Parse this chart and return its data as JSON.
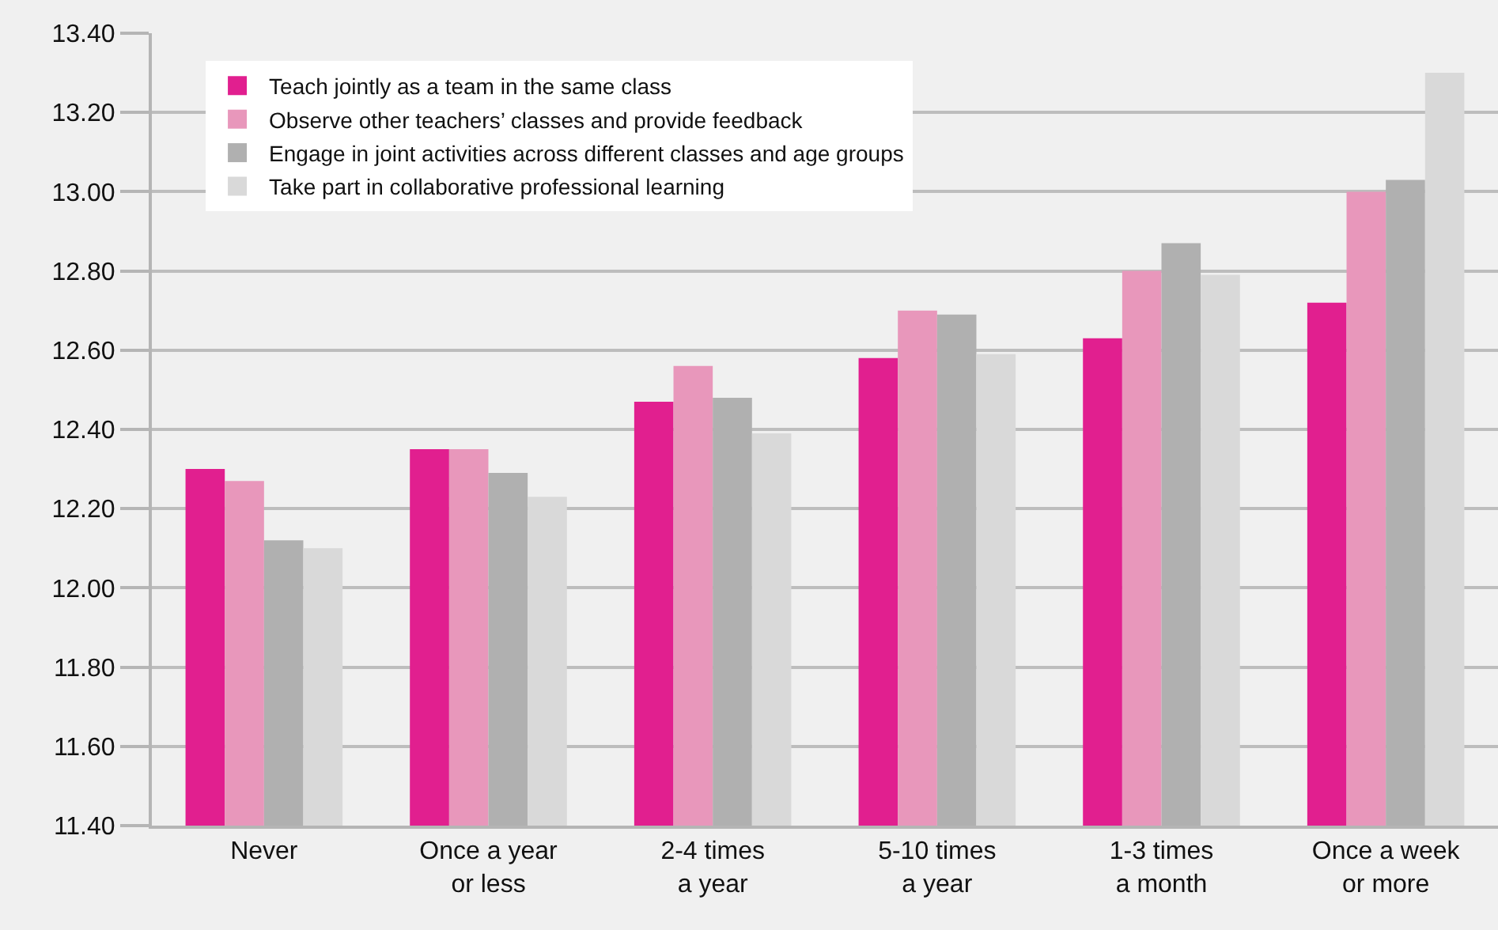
{
  "chart_data": {
    "type": "bar",
    "categories": [
      "Never",
      "Once a year\nor less",
      "2-4 times\na year",
      "5-10 times\na year",
      "1-3 times\na month",
      "Once a week\nor more"
    ],
    "series": [
      {
        "name": "Teach jointly as a team in the same class",
        "color": "#e11f8f",
        "values": [
          12.3,
          12.35,
          12.47,
          12.58,
          12.63,
          12.72
        ]
      },
      {
        "name": "Observe other teachers’ classes and provide feedback",
        "color": "#e897bb",
        "values": [
          12.27,
          12.35,
          12.56,
          12.7,
          12.8,
          13.0
        ]
      },
      {
        "name": "Engage in joint activities across different classes and age groups",
        "color": "#b0b0b0",
        "values": [
          12.12,
          12.29,
          12.48,
          12.69,
          12.87,
          13.03
        ]
      },
      {
        "name": "Take part in collaborative professional learning",
        "color": "#d9d9d9",
        "values": [
          12.1,
          12.23,
          12.39,
          12.59,
          12.79,
          13.3
        ]
      }
    ],
    "ylim": [
      11.4,
      13.4
    ],
    "yticks": [
      {
        "value": 11.4,
        "label": "11.40"
      },
      {
        "value": 11.6,
        "label": "11.60"
      },
      {
        "value": 11.8,
        "label": "11.80"
      },
      {
        "value": 12.0,
        "label": "12.00"
      },
      {
        "value": 12.2,
        "label": "12.20"
      },
      {
        "value": 12.4,
        "label": "12.40"
      },
      {
        "value": 12.6,
        "label": "12.60"
      },
      {
        "value": 12.8,
        "label": "12.80"
      },
      {
        "value": 13.0,
        "label": "13.00"
      },
      {
        "value": 13.2,
        "label": "13.20"
      },
      {
        "value": 13.4,
        "label": "13.40"
      }
    ],
    "grid": "y",
    "legend": "top left"
  }
}
